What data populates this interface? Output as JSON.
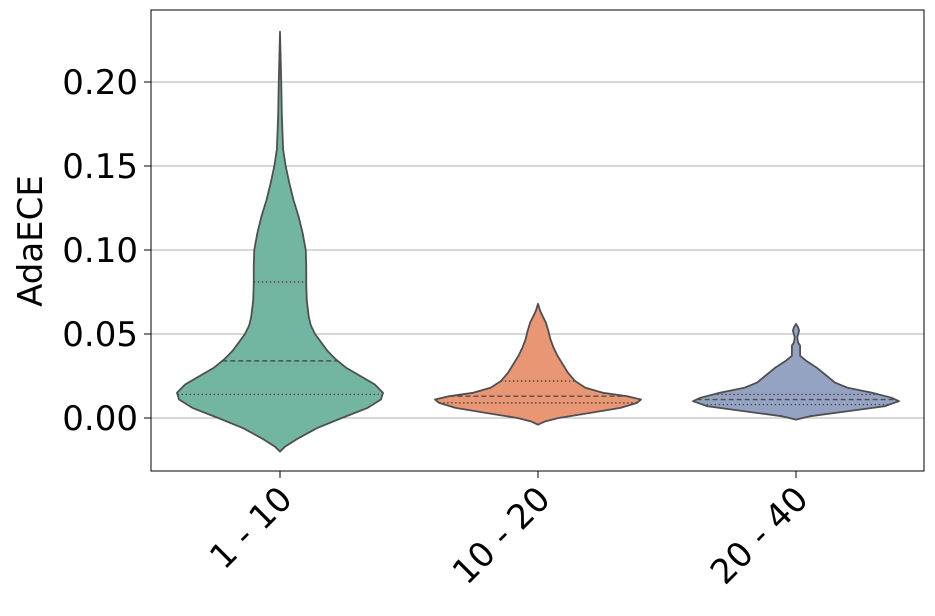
{
  "chart_data": {
    "type": "violin",
    "title": "",
    "xlabel": "",
    "ylabel": "AdaECE",
    "ylim": [
      -0.033,
      0.243
    ],
    "grid": "horizontal",
    "yticks": [
      "0.00",
      "0.05",
      "0.10",
      "0.15",
      "0.20"
    ],
    "ytick_values": [
      0.0,
      0.05,
      0.1,
      0.15,
      0.2
    ],
    "categories": [
      "1 - 10",
      "10 - 20",
      "20 - 40"
    ],
    "colors": [
      "#72b6a1",
      "#e99675",
      "#95a3c3"
    ],
    "outline_color": "#4f4f4f",
    "violins": [
      {
        "category": "1 - 10",
        "min": -0.02,
        "max": 0.23,
        "q1": 0.014,
        "median": 0.034,
        "q3": 0.081,
        "density": [
          [
            -0.02,
            0.0
          ],
          [
            -0.017,
            0.05
          ],
          [
            -0.012,
            0.18
          ],
          [
            -0.006,
            0.36
          ],
          [
            0.0,
            0.6
          ],
          [
            0.006,
            0.85
          ],
          [
            0.011,
            0.98
          ],
          [
            0.015,
            1.0
          ],
          [
            0.02,
            0.92
          ],
          [
            0.025,
            0.78
          ],
          [
            0.03,
            0.64
          ],
          [
            0.035,
            0.54
          ],
          [
            0.04,
            0.46
          ],
          [
            0.045,
            0.4
          ],
          [
            0.05,
            0.34
          ],
          [
            0.055,
            0.3
          ],
          [
            0.06,
            0.28
          ],
          [
            0.07,
            0.26
          ],
          [
            0.08,
            0.255
          ],
          [
            0.09,
            0.255
          ],
          [
            0.1,
            0.25
          ],
          [
            0.11,
            0.22
          ],
          [
            0.12,
            0.18
          ],
          [
            0.13,
            0.13
          ],
          [
            0.14,
            0.09
          ],
          [
            0.15,
            0.055
          ],
          [
            0.16,
            0.03
          ],
          [
            0.18,
            0.018
          ],
          [
            0.2,
            0.012
          ],
          [
            0.21,
            0.008
          ],
          [
            0.22,
            0.004
          ],
          [
            0.23,
            0.0
          ]
        ]
      },
      {
        "category": "10 - 20",
        "min": -0.004,
        "max": 0.068,
        "q1": 0.009,
        "median": 0.013,
        "q3": 0.022,
        "density": [
          [
            -0.004,
            0.0
          ],
          [
            -0.002,
            0.07
          ],
          [
            0.0,
            0.2
          ],
          [
            0.003,
            0.5
          ],
          [
            0.006,
            0.8
          ],
          [
            0.009,
            0.96
          ],
          [
            0.011,
            1.0
          ],
          [
            0.013,
            0.86
          ],
          [
            0.015,
            0.63
          ],
          [
            0.018,
            0.46
          ],
          [
            0.022,
            0.36
          ],
          [
            0.027,
            0.29
          ],
          [
            0.032,
            0.24
          ],
          [
            0.037,
            0.19
          ],
          [
            0.042,
            0.15
          ],
          [
            0.047,
            0.12
          ],
          [
            0.052,
            0.1
          ],
          [
            0.057,
            0.075
          ],
          [
            0.06,
            0.05
          ],
          [
            0.064,
            0.02
          ],
          [
            0.068,
            0.0
          ]
        ]
      },
      {
        "category": "20 - 40",
        "min": -0.001,
        "max": 0.056,
        "q1": 0.008,
        "median": 0.011,
        "q3": 0.014,
        "density": [
          [
            -0.001,
            0.0
          ],
          [
            0.001,
            0.13
          ],
          [
            0.004,
            0.5
          ],
          [
            0.007,
            0.86
          ],
          [
            0.01,
            1.0
          ],
          [
            0.012,
            0.93
          ],
          [
            0.015,
            0.74
          ],
          [
            0.018,
            0.5
          ],
          [
            0.021,
            0.38
          ],
          [
            0.025,
            0.3
          ],
          [
            0.03,
            0.2
          ],
          [
            0.034,
            0.1
          ],
          [
            0.037,
            0.04
          ],
          [
            0.04,
            0.04
          ],
          [
            0.043,
            0.04
          ],
          [
            0.045,
            0.02
          ],
          [
            0.048,
            0.012
          ],
          [
            0.052,
            0.03
          ],
          [
            0.054,
            0.02
          ],
          [
            0.056,
            0.0
          ]
        ]
      }
    ]
  }
}
